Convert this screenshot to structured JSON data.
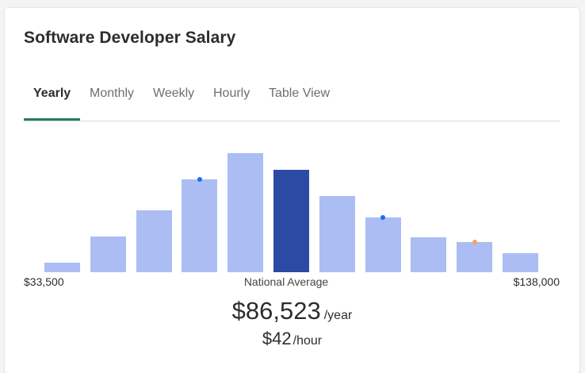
{
  "card": {
    "title": "Software Developer Salary"
  },
  "tabs": [
    {
      "label": "Yearly",
      "active": true
    },
    {
      "label": "Monthly",
      "active": false
    },
    {
      "label": "Weekly",
      "active": false
    },
    {
      "label": "Hourly",
      "active": false
    },
    {
      "label": "Table View",
      "active": false
    }
  ],
  "colors": {
    "accent_underline": "#2a7d63",
    "bar": "#abbdf3",
    "bar_highlight": "#2a4aa4",
    "marker_blue": "#1b6ef0",
    "marker_orange": "#f6a35a"
  },
  "chart_data": {
    "type": "bar",
    "title": "",
    "xlabel": "",
    "ylabel": "",
    "bins": 11,
    "relative_heights": [
      0.08,
      0.3,
      0.52,
      0.78,
      1.0,
      0.86,
      0.64,
      0.46,
      0.29,
      0.25,
      0.16
    ],
    "highlight_index": 5,
    "markers": [
      {
        "bin": 3,
        "color": "blue",
        "relative_height": 0.78
      },
      {
        "bin": 7,
        "color": "blue",
        "relative_height": 0.46
      },
      {
        "bin": 9,
        "color": "orange",
        "relative_height": 0.25
      }
    ],
    "range": {
      "min": "$33,500",
      "max": "$138,000"
    },
    "center_label": "National Average"
  },
  "summary": {
    "yearly_value": "$86,523",
    "yearly_unit": "/year",
    "hourly_value": "$42",
    "hourly_unit": "/hour"
  }
}
